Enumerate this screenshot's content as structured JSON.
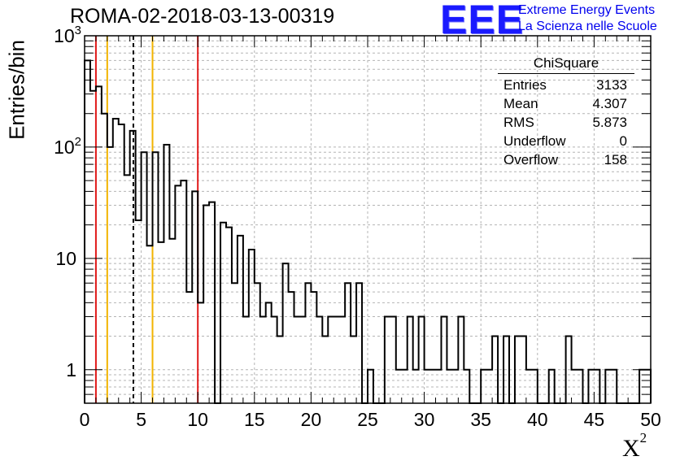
{
  "title": "ROMA-02-2018-03-13-00319",
  "logo": {
    "text": "EEE",
    "line1": "Extreme Energy Events",
    "line2": "La Scienza nelle Scuole",
    "color": "#1a1aff"
  },
  "stats": {
    "title": "ChiSquare",
    "rows": [
      {
        "label": "Entries",
        "value": "3133"
      },
      {
        "label": "Mean",
        "value": "4.307"
      },
      {
        "label": "RMS",
        "value": "5.873"
      },
      {
        "label": "Underflow",
        "value": "0"
      },
      {
        "label": "Overflow",
        "value": "158"
      }
    ]
  },
  "chart_data": {
    "type": "bar",
    "title": "ROMA-02-2018-03-13-00319",
    "xlabel": "X²",
    "ylabel": "Entries/bin",
    "xlim": [
      0,
      50
    ],
    "ylim": [
      0.5,
      1000
    ],
    "y_scale": "log",
    "grid": true,
    "bin_width": 0.5,
    "x_ticks": [
      "0",
      "5",
      "10",
      "15",
      "20",
      "25",
      "30",
      "35",
      "40",
      "45",
      "50"
    ],
    "y_ticks": [
      {
        "value": 1,
        "label": "1"
      },
      {
        "value": 10,
        "label": "10"
      },
      {
        "value": 100,
        "label": "10",
        "sup": "2"
      },
      {
        "value": 1000,
        "label": "10",
        "sup": "3"
      }
    ],
    "values": [
      600,
      320,
      350,
      200,
      100,
      180,
      160,
      56,
      140,
      22,
      90,
      13,
      90,
      14,
      105,
      15,
      45,
      50,
      5,
      40,
      4,
      30,
      32,
      0,
      21,
      19,
      6,
      16,
      3,
      12,
      6,
      3,
      4,
      3,
      2,
      9,
      5,
      3,
      3,
      6,
      5,
      3,
      2,
      3,
      3,
      3,
      6,
      2,
      6,
      0,
      1,
      0,
      0,
      3,
      3,
      1,
      1,
      3,
      1,
      3,
      1,
      1,
      1,
      3,
      1,
      1,
      3,
      1,
      0,
      0,
      1,
      1,
      2,
      0,
      2,
      0,
      2,
      2,
      1,
      1,
      0,
      0,
      1,
      0,
      0,
      2,
      1,
      1,
      0,
      1,
      1,
      0,
      1,
      1,
      0,
      0,
      0,
      0,
      1,
      1
    ],
    "vertical_lines": [
      {
        "x": 1,
        "color": "#e11a1a",
        "style": "solid"
      },
      {
        "x": 2,
        "color": "#f2b400",
        "style": "solid"
      },
      {
        "x": 4.307,
        "color": "#000000",
        "style": "dashed"
      },
      {
        "x": 6,
        "color": "#f2b400",
        "style": "solid"
      },
      {
        "x": 10,
        "color": "#e11a1a",
        "style": "solid"
      }
    ]
  }
}
